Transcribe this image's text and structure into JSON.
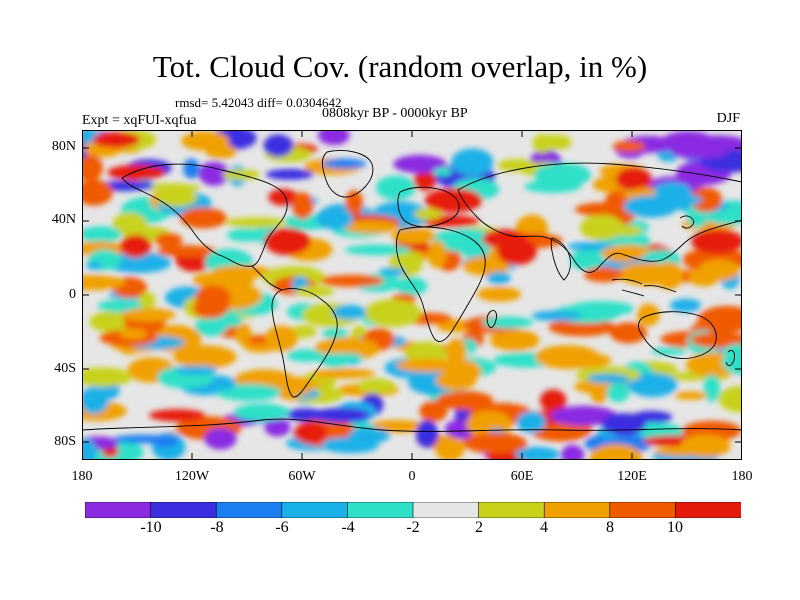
{
  "title": "Tot. Cloud Cov. (random overlap, in %)",
  "stats": "rmsd= 5.42043 diff= 0.0304642",
  "experiment": "Expt = xqFUI-xqfua",
  "period": "0808kyr BP - 0000kyr BP",
  "season": "DJF",
  "lat_labels": [
    "80N",
    "40N",
    "0",
    "40S",
    "80S"
  ],
  "lon_labels": [
    "180",
    "120W",
    "60W",
    "0",
    "60E",
    "120E",
    "180"
  ],
  "colorbar": {
    "labels": [
      "-10",
      "-8",
      "-6",
      "-4",
      "-2",
      "2",
      "4",
      "8",
      "10"
    ],
    "colors": [
      "#8a2be2",
      "#3a2ee0",
      "#1a7ff0",
      "#1ab0e8",
      "#2ee0c8",
      "#e6e6e6",
      "#c8d21a",
      "#f0a000",
      "#f05a00",
      "#e61a0a"
    ]
  },
  "map_colors": {
    "neutral": "#e6e6e6",
    "coast": "#000000"
  }
}
